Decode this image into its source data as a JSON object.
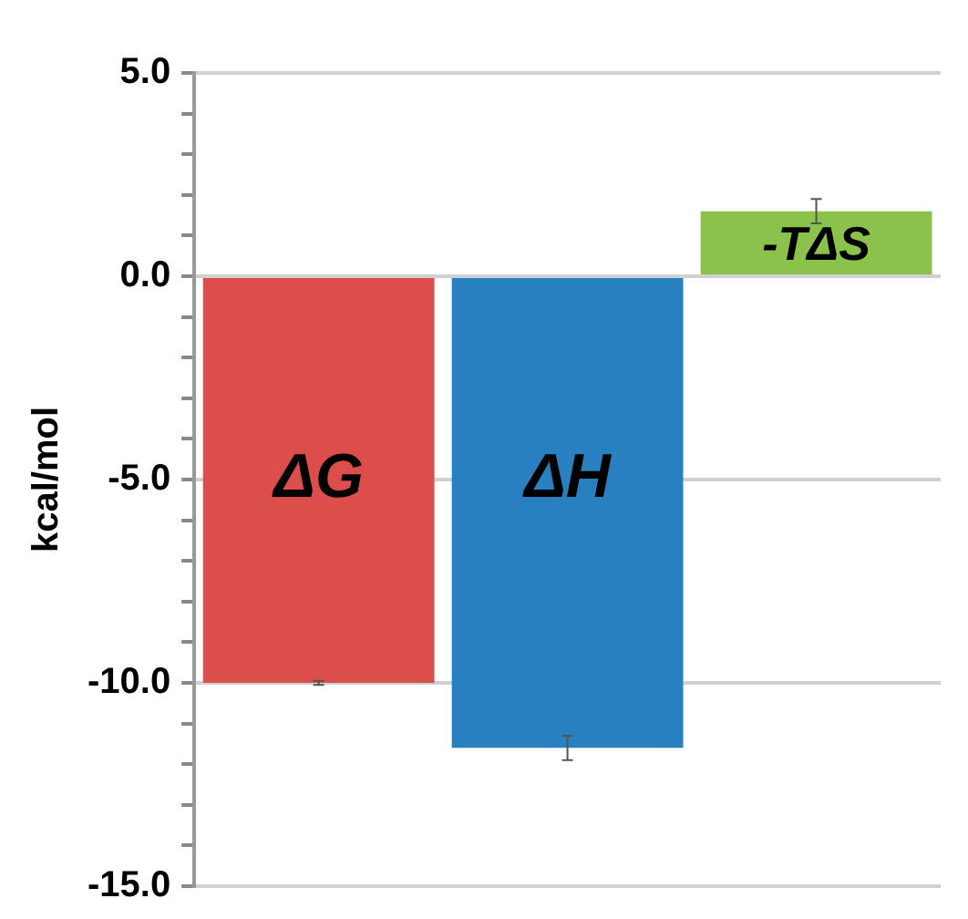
{
  "chart_data": {
    "type": "bar",
    "ylabel": "kcal/mol",
    "categories": [
      "ΔG",
      "ΔH",
      "-TΔS"
    ],
    "values": [
      -10.0,
      -11.6,
      1.6
    ],
    "colors": [
      "#dc4e4c",
      "#2980c0",
      "#8bc24c"
    ],
    "errors": [
      0.05,
      0.3,
      0.3
    ],
    "ylim": [
      -15,
      5
    ],
    "yticks": [
      {
        "value": -15,
        "label": "-15.0"
      },
      {
        "value": -14,
        "label": null
      },
      {
        "value": -13,
        "label": null
      },
      {
        "value": -12,
        "label": null
      },
      {
        "value": -11,
        "label": null
      },
      {
        "value": -10,
        "label": "-10.0"
      },
      {
        "value": -9,
        "label": null
      },
      {
        "value": -8,
        "label": null
      },
      {
        "value": -7,
        "label": null
      },
      {
        "value": -6,
        "label": null
      },
      {
        "value": -5,
        "label": "-5.0"
      },
      {
        "value": -4,
        "label": null
      },
      {
        "value": -3,
        "label": null
      },
      {
        "value": -2,
        "label": null
      },
      {
        "value": -1,
        "label": null
      },
      {
        "value": 0,
        "label": "0.0"
      },
      {
        "value": 1,
        "label": null
      },
      {
        "value": 2,
        "label": null
      },
      {
        "value": 3,
        "label": null
      },
      {
        "value": 4,
        "label": null
      },
      {
        "value": 5,
        "label": "5.0"
      }
    ],
    "grid": "y",
    "tick_labels": "y"
  }
}
